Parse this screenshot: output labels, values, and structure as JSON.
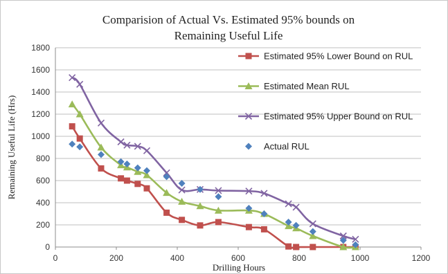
{
  "chart_data": {
    "type": "line",
    "title_lines": [
      "Comparision of Actual Vs. Estimated 95% bounds on",
      "Remaining  Useful Life"
    ],
    "xlabel": "Drilling Hours",
    "ylabel": "Remaining Useful Life (Hrs)",
    "xlim": [
      0,
      1200
    ],
    "ylim": [
      0,
      1800
    ],
    "xticks": [
      0,
      200,
      400,
      600,
      800,
      1000,
      1200
    ],
    "yticks": [
      0,
      200,
      400,
      600,
      800,
      1000,
      1200,
      1400,
      1600,
      1800
    ],
    "grid": "horizontal",
    "legend_position": "right",
    "series": [
      {
        "name": "Estimated 95% Lower Bound on RUL",
        "color": "#C0504D",
        "marker": "square",
        "line": true,
        "points": [
          [
            55,
            1090
          ],
          [
            80,
            980
          ],
          [
            150,
            710
          ],
          [
            215,
            620
          ],
          [
            235,
            600
          ],
          [
            270,
            570
          ],
          [
            300,
            530
          ],
          [
            365,
            310
          ],
          [
            415,
            245
          ],
          [
            475,
            195
          ],
          [
            535,
            225
          ],
          [
            635,
            180
          ],
          [
            685,
            160
          ],
          [
            765,
            5
          ],
          [
            790,
            0
          ],
          [
            845,
            0
          ],
          [
            945,
            0
          ],
          [
            985,
            0
          ]
        ]
      },
      {
        "name": "Estimated Mean RUL",
        "color": "#9BBB59",
        "marker": "triangle",
        "line": true,
        "points": [
          [
            55,
            1290
          ],
          [
            80,
            1200
          ],
          [
            150,
            900
          ],
          [
            215,
            740
          ],
          [
            235,
            720
          ],
          [
            270,
            680
          ],
          [
            300,
            650
          ],
          [
            365,
            490
          ],
          [
            415,
            410
          ],
          [
            475,
            370
          ],
          [
            535,
            330
          ],
          [
            635,
            330
          ],
          [
            685,
            300
          ],
          [
            765,
            190
          ],
          [
            790,
            170
          ],
          [
            845,
            100
          ],
          [
            945,
            0
          ],
          [
            985,
            0
          ]
        ]
      },
      {
        "name": "Estimated 95% Upper Bound on RUL",
        "color": "#8064A2",
        "marker": "x",
        "line": true,
        "points": [
          [
            55,
            1530
          ],
          [
            80,
            1470
          ],
          [
            150,
            1120
          ],
          [
            215,
            950
          ],
          [
            235,
            920
          ],
          [
            270,
            910
          ],
          [
            300,
            870
          ],
          [
            365,
            670
          ],
          [
            415,
            515
          ],
          [
            475,
            520
          ],
          [
            535,
            510
          ],
          [
            635,
            505
          ],
          [
            685,
            485
          ],
          [
            765,
            390
          ],
          [
            790,
            360
          ],
          [
            845,
            210
          ],
          [
            945,
            100
          ],
          [
            985,
            70
          ]
        ]
      },
      {
        "name": "Actual RUL",
        "color": "#4F81BD",
        "marker": "diamond",
        "line": false,
        "points": [
          [
            55,
            930
          ],
          [
            80,
            905
          ],
          [
            150,
            835
          ],
          [
            215,
            770
          ],
          [
            235,
            750
          ],
          [
            270,
            715
          ],
          [
            300,
            690
          ],
          [
            365,
            635
          ],
          [
            415,
            575
          ],
          [
            475,
            520
          ],
          [
            535,
            455
          ],
          [
            635,
            350
          ],
          [
            685,
            300
          ],
          [
            765,
            225
          ],
          [
            790,
            195
          ],
          [
            845,
            140
          ],
          [
            945,
            60
          ],
          [
            985,
            20
          ]
        ]
      }
    ]
  }
}
